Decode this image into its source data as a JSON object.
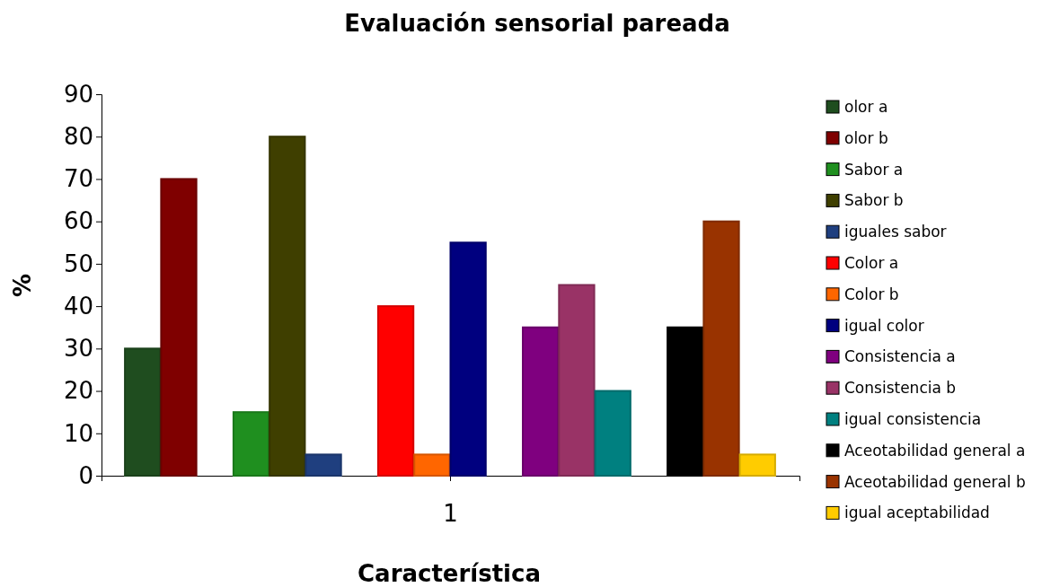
{
  "chart_data": {
    "type": "bar",
    "title": "Evaluación sensorial pareada",
    "xlabel": "Característica",
    "ylabel": "%",
    "categories": [
      "1"
    ],
    "series": [
      {
        "name": "olor a",
        "color": "#1f4d1f",
        "values": [
          30
        ]
      },
      {
        "name": "olor b",
        "color": "#7f0000",
        "values": [
          70
        ]
      },
      {
        "values": [
          null
        ]
      },
      {
        "name": "Sabor a",
        "color": "#1f8f1f",
        "values": [
          15
        ]
      },
      {
        "name": "Sabor b",
        "color": "#3f3f00",
        "values": [
          80
        ]
      },
      {
        "name": "iguales sabor",
        "color": "#1f3f7f",
        "values": [
          5
        ]
      },
      {
        "values": [
          null
        ]
      },
      {
        "name": "Color a",
        "color": "#ff0000",
        "values": [
          40
        ]
      },
      {
        "name": "Color b",
        "color": "#ff6600",
        "values": [
          5
        ]
      },
      {
        "name": "igual color",
        "color": "#00007f",
        "values": [
          55
        ]
      },
      {
        "values": [
          null
        ]
      },
      {
        "name": "Consistencia a",
        "color": "#7f007f",
        "values": [
          35
        ]
      },
      {
        "name": "Consistencia b",
        "color": "#993366",
        "values": [
          45
        ]
      },
      {
        "name": "igual consistencia",
        "color": "#008080",
        "values": [
          20
        ]
      },
      {
        "values": [
          null
        ]
      },
      {
        "name": "Aceotabilidad general a",
        "color": "#000000",
        "values": [
          35
        ]
      },
      {
        "name": "Aceotabilidad general b",
        "color": "#993300",
        "values": [
          60
        ]
      },
      {
        "name": "igual aceptabilidad",
        "color": "#ffcc00",
        "values": [
          5
        ]
      }
    ],
    "ylim": [
      0,
      90
    ],
    "yticks": [
      0,
      10,
      20,
      30,
      40,
      50,
      60,
      70,
      80,
      90
    ],
    "grid": false,
    "legend": "right"
  }
}
